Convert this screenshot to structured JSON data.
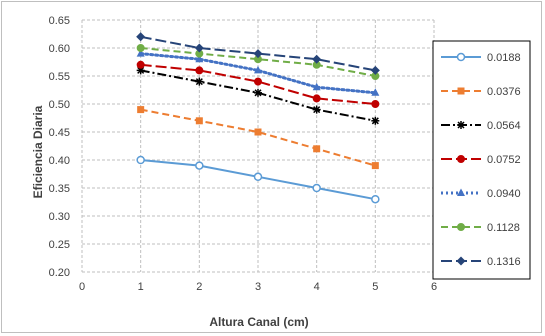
{
  "chart_data": {
    "type": "line",
    "title": "",
    "xlabel": "Altura Canal (cm)",
    "ylabel": "Eficiencia Diaria",
    "xlim": [
      0,
      6
    ],
    "ylim": [
      0.2,
      0.65
    ],
    "x_ticks": [
      "0",
      "1",
      "2",
      "3",
      "4",
      "5",
      "6"
    ],
    "y_ticks": [
      "0.20",
      "0.25",
      "0.30",
      "0.35",
      "0.40",
      "0.45",
      "0.50",
      "0.55",
      "0.60",
      "0.65"
    ],
    "grid": true,
    "legend_position": "right",
    "x": [
      1,
      2,
      3,
      4,
      5
    ],
    "series": [
      {
        "name": "0.0188",
        "values": [
          0.4,
          0.39,
          0.37,
          0.35,
          0.33
        ],
        "color": "#5b9bd5",
        "dash": "solid",
        "marker": "circle-open"
      },
      {
        "name": "0.0376",
        "values": [
          0.49,
          0.47,
          0.45,
          0.42,
          0.39
        ],
        "color": "#ed7d31",
        "dash": "dash",
        "marker": "square"
      },
      {
        "name": "0.0564",
        "values": [
          0.56,
          0.54,
          0.52,
          0.49,
          0.47
        ],
        "color": "#000000",
        "dash": "dashdot",
        "marker": "star"
      },
      {
        "name": "0.0752",
        "values": [
          0.57,
          0.56,
          0.54,
          0.51,
          0.5
        ],
        "color": "#c00000",
        "dash": "longdash",
        "marker": "circle"
      },
      {
        "name": "0.0940",
        "values": [
          0.59,
          0.58,
          0.56,
          0.53,
          0.52
        ],
        "color": "#4472c4",
        "dash": "dot",
        "marker": "triangle"
      },
      {
        "name": "0.1128",
        "values": [
          0.6,
          0.59,
          0.58,
          0.57,
          0.55
        ],
        "color": "#70ad47",
        "dash": "dash",
        "marker": "circle"
      },
      {
        "name": "0.1316",
        "values": [
          0.62,
          0.6,
          0.59,
          0.58,
          0.56
        ],
        "color": "#264478",
        "dash": "longdash",
        "marker": "diamond"
      }
    ]
  }
}
